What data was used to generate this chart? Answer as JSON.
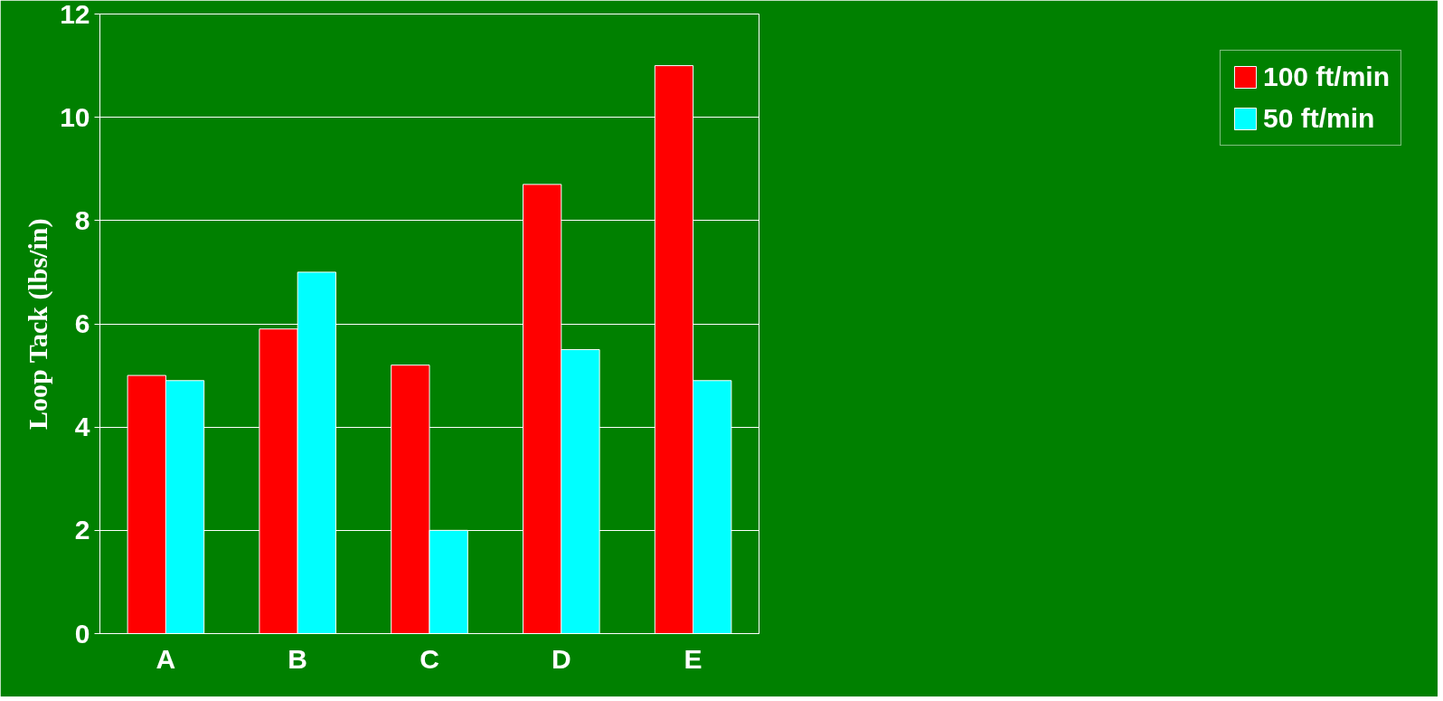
{
  "chart_data": {
    "type": "bar",
    "ylabel": "Loop Tack (lbs/in)",
    "categories": [
      "A",
      "B",
      "C",
      "D",
      "E"
    ],
    "series": [
      {
        "name": "100 ft/min",
        "color": "#ff0000",
        "values": [
          5.0,
          5.9,
          5.2,
          8.7,
          11.0
        ]
      },
      {
        "name": "50 ft/min",
        "color": "#00ffff",
        "values": [
          4.9,
          7.0,
          2.0,
          5.5,
          4.9
        ]
      }
    ],
    "ylim": [
      0,
      12
    ],
    "yticks": [
      0,
      2,
      4,
      6,
      8,
      10,
      12
    ],
    "grid": "y",
    "legend": "right"
  }
}
